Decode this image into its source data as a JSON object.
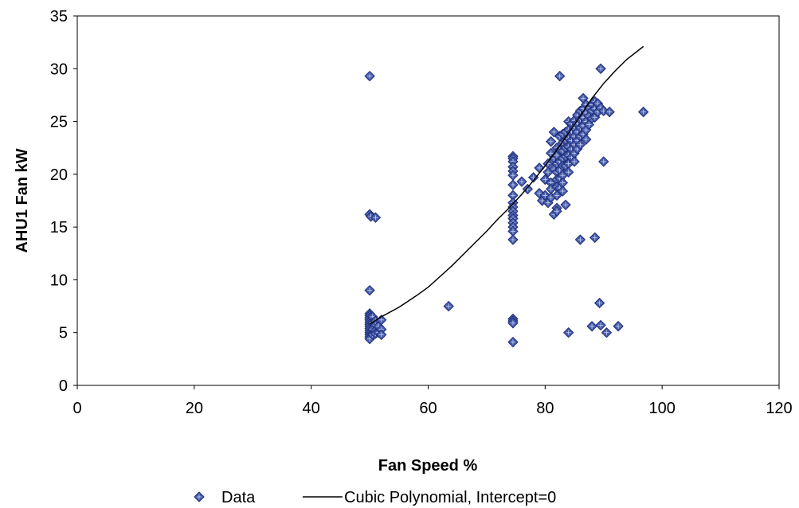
{
  "chart_data": {
    "type": "scatter",
    "title": "",
    "xlabel": "Fan Speed %",
    "ylabel": "AHU1 Fan kW",
    "xlim": [
      0,
      120
    ],
    "ylim": [
      0,
      35
    ],
    "xticks": [
      0,
      20,
      40,
      60,
      80,
      100,
      120
    ],
    "yticks": [
      0,
      5,
      10,
      15,
      20,
      25,
      30,
      35
    ],
    "grid": false,
    "legend_position": "bottom",
    "colors": {
      "marker_fill": "#4a5fae",
      "marker_stroke": "#1f2f7a",
      "fit_line": "#000000"
    },
    "series": [
      {
        "name": "Data",
        "kind": "scatter",
        "marker": "diamond",
        "points": [
          [
            50,
            29.3
          ],
          [
            50,
            16.2
          ],
          [
            50.2,
            16.0
          ],
          [
            51,
            15.9
          ],
          [
            50,
            9.0
          ],
          [
            50,
            6.8
          ],
          [
            50,
            6.6
          ],
          [
            50,
            6.4
          ],
          [
            50,
            6.2
          ],
          [
            50,
            6.0
          ],
          [
            50,
            5.8
          ],
          [
            50,
            5.6
          ],
          [
            50,
            5.4
          ],
          [
            50,
            5.2
          ],
          [
            50,
            5.0
          ],
          [
            50,
            4.8
          ],
          [
            50,
            4.6
          ],
          [
            50,
            4.4
          ],
          [
            50.5,
            6.5
          ],
          [
            50.5,
            5.9
          ],
          [
            50.5,
            5.3
          ],
          [
            50.5,
            4.8
          ],
          [
            51,
            6.1
          ],
          [
            51,
            5.7
          ],
          [
            51,
            5.2
          ],
          [
            51,
            4.9
          ],
          [
            51.5,
            5.6
          ],
          [
            51.5,
            5.0
          ],
          [
            52,
            6.2
          ],
          [
            52,
            5.3
          ],
          [
            52,
            4.8
          ],
          [
            63.5,
            7.5
          ],
          [
            74.5,
            21.7
          ],
          [
            74.5,
            21.5
          ],
          [
            74.5,
            21.2
          ],
          [
            74.5,
            20.7
          ],
          [
            74.5,
            20.3
          ],
          [
            74.5,
            19.9
          ],
          [
            74.5,
            19.0
          ],
          [
            74.5,
            18.0
          ],
          [
            74.5,
            17.3
          ],
          [
            74.5,
            16.9
          ],
          [
            74.5,
            16.5
          ],
          [
            74.5,
            16.1
          ],
          [
            74.5,
            15.8
          ],
          [
            74.5,
            15.4
          ],
          [
            74.5,
            15.0
          ],
          [
            74.5,
            14.6
          ],
          [
            74.5,
            13.8
          ],
          [
            74.5,
            6.3
          ],
          [
            74.5,
            6.1
          ],
          [
            74.5,
            5.9
          ],
          [
            74.5,
            4.1
          ],
          [
            76,
            19.3
          ],
          [
            77,
            18.6
          ],
          [
            78,
            19.7
          ],
          [
            79,
            20.6
          ],
          [
            79,
            18.2
          ],
          [
            79.5,
            17.5
          ],
          [
            80,
            19.5
          ],
          [
            80,
            18.0
          ],
          [
            80.5,
            17.3
          ],
          [
            80.5,
            21.0
          ],
          [
            80.5,
            20.2
          ],
          [
            81,
            23.1
          ],
          [
            81,
            22.0
          ],
          [
            81,
            19.2
          ],
          [
            81,
            18.6
          ],
          [
            81,
            17.8
          ],
          [
            81.5,
            24.0
          ],
          [
            81.5,
            21.5
          ],
          [
            81.5,
            20.5
          ],
          [
            81.5,
            16.2
          ],
          [
            82,
            22.5
          ],
          [
            82,
            21.8
          ],
          [
            82,
            21.0
          ],
          [
            82,
            20.2
          ],
          [
            82,
            19.5
          ],
          [
            82,
            18.8
          ],
          [
            82,
            18.0
          ],
          [
            82,
            16.8
          ],
          [
            82,
            16.5
          ],
          [
            82.5,
            29.3
          ],
          [
            82.5,
            23.6
          ],
          [
            82.5,
            22.3
          ],
          [
            82.5,
            21.2
          ],
          [
            82.5,
            20.4
          ],
          [
            82.5,
            19.6
          ],
          [
            82.5,
            18.7
          ],
          [
            83,
            23.8
          ],
          [
            83,
            23.0
          ],
          [
            83,
            22.2
          ],
          [
            83,
            21.5
          ],
          [
            83,
            20.8
          ],
          [
            83,
            19.9
          ],
          [
            83,
            19.2
          ],
          [
            83,
            18.4
          ],
          [
            83.5,
            24.0
          ],
          [
            83.5,
            23.2
          ],
          [
            83.5,
            22.5
          ],
          [
            83.5,
            21.7
          ],
          [
            83.5,
            20.8
          ],
          [
            83.5,
            17.1
          ],
          [
            84,
            25.0
          ],
          [
            84,
            24.2
          ],
          [
            84,
            23.4
          ],
          [
            84,
            22.6
          ],
          [
            84,
            21.8
          ],
          [
            84,
            21.0
          ],
          [
            84,
            20.2
          ],
          [
            84,
            5.0
          ],
          [
            84.5,
            24.8
          ],
          [
            84.5,
            24.0
          ],
          [
            84.5,
            23.2
          ],
          [
            84.5,
            22.4
          ],
          [
            84.5,
            21.6
          ],
          [
            85,
            25.1
          ],
          [
            85,
            24.4
          ],
          [
            85,
            23.6
          ],
          [
            85,
            22.8
          ],
          [
            85,
            22.0
          ],
          [
            85,
            21.2
          ],
          [
            85.5,
            25.6
          ],
          [
            85.5,
            24.8
          ],
          [
            85.5,
            24.0
          ],
          [
            85.5,
            23.2
          ],
          [
            85.5,
            22.4
          ],
          [
            86,
            26.0
          ],
          [
            86,
            25.2
          ],
          [
            86,
            24.4
          ],
          [
            86,
            23.6
          ],
          [
            86,
            22.8
          ],
          [
            86,
            13.8
          ],
          [
            86.5,
            27.2
          ],
          [
            86.5,
            26.2
          ],
          [
            86.5,
            25.4
          ],
          [
            86.5,
            24.6
          ],
          [
            86.5,
            23.8
          ],
          [
            87,
            26.6
          ],
          [
            87,
            25.8
          ],
          [
            87,
            25.0
          ],
          [
            87,
            24.2
          ],
          [
            87,
            23.3
          ],
          [
            87.5,
            26.3
          ],
          [
            87.5,
            25.5
          ],
          [
            87.5,
            24.7
          ],
          [
            88,
            26.6
          ],
          [
            88,
            26.0
          ],
          [
            88,
            25.3
          ],
          [
            88,
            5.6
          ],
          [
            88.5,
            26.9
          ],
          [
            88.5,
            26.2
          ],
          [
            88.5,
            25.4
          ],
          [
            88.5,
            14.0
          ],
          [
            89,
            26.7
          ],
          [
            89,
            25.9
          ],
          [
            89.3,
            7.8
          ],
          [
            89.5,
            30.0
          ],
          [
            89.5,
            26.3
          ],
          [
            89.5,
            5.7
          ],
          [
            90,
            21.2
          ],
          [
            90,
            26.0
          ],
          [
            90.5,
            5.0
          ],
          [
            91,
            25.9
          ],
          [
            92.5,
            5.6
          ],
          [
            96.8,
            25.9
          ]
        ]
      },
      {
        "name": "Cubic Polynomial, Intercept=0",
        "kind": "line",
        "points": [
          [
            50,
            5.8
          ],
          [
            52,
            6.5
          ],
          [
            55,
            7.4
          ],
          [
            58,
            8.5
          ],
          [
            60,
            9.3
          ],
          [
            62,
            10.3
          ],
          [
            64,
            11.3
          ],
          [
            66,
            12.4
          ],
          [
            68,
            13.5
          ],
          [
            70,
            14.6
          ],
          [
            72,
            15.8
          ],
          [
            74,
            16.9
          ],
          [
            76,
            18.1
          ],
          [
            78,
            19.4
          ],
          [
            80,
            20.8
          ],
          [
            82,
            22.3
          ],
          [
            84,
            23.9
          ],
          [
            86,
            25.5
          ],
          [
            88,
            27.2
          ],
          [
            90,
            28.6
          ],
          [
            92,
            29.8
          ],
          [
            94,
            30.9
          ],
          [
            96.8,
            32.1
          ]
        ]
      }
    ]
  }
}
